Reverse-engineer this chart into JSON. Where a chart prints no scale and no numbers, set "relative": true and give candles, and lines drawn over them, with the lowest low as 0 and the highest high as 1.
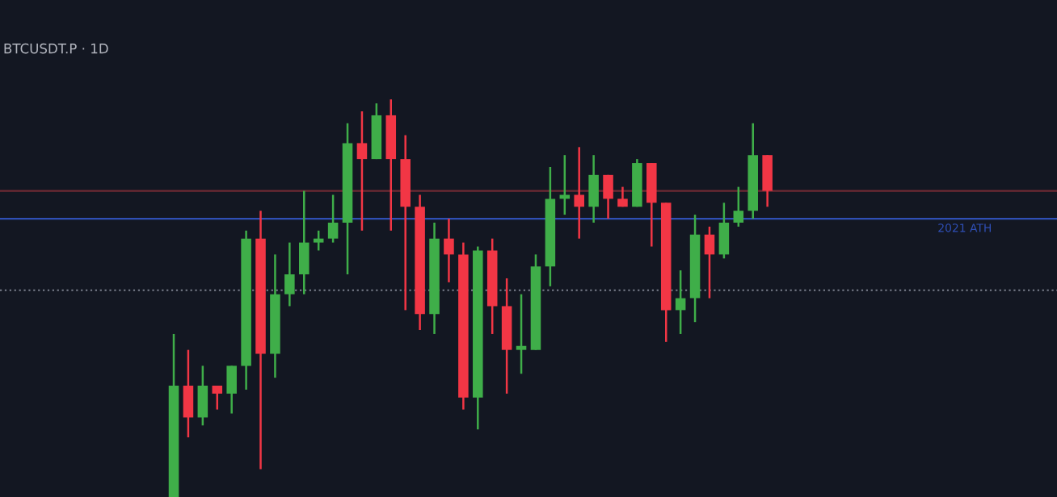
{
  "chart_data": {
    "type": "candlestick",
    "title": "BTCUSDT.P · 1D",
    "relative": true,
    "categories": [
      null,
      null,
      null,
      null,
      null,
      null,
      null,
      null,
      null,
      null,
      null,
      null,
      null,
      null,
      null,
      null,
      null,
      null,
      null,
      null,
      null,
      null,
      null,
      null,
      null,
      null,
      null,
      null,
      null,
      null,
      null,
      null,
      null,
      null,
      null,
      null,
      null,
      null,
      null,
      null,
      null,
      null
    ],
    "ohlc": [
      [
        0,
        0.41,
        0,
        0.28
      ],
      [
        0.28,
        0.37,
        0.15,
        0.2
      ],
      [
        0.2,
        0.33,
        0.18,
        0.28
      ],
      [
        0.28,
        0.28,
        0.22,
        0.26
      ],
      [
        0.26,
        0.33,
        0.21,
        0.33
      ],
      [
        0.33,
        0.67,
        0.27,
        0.65
      ],
      [
        0.65,
        0.72,
        0.07,
        0.36
      ],
      [
        0.36,
        0.61,
        0.3,
        0.51
      ],
      [
        0.51,
        0.64,
        0.48,
        0.56
      ],
      [
        0.56,
        0.77,
        0.51,
        0.64
      ],
      [
        0.64,
        0.67,
        0.62,
        0.65
      ],
      [
        0.65,
        0.76,
        0.64,
        0.69
      ],
      [
        0.69,
        0.94,
        0.56,
        0.89
      ],
      [
        0.89,
        0.97,
        0.67,
        0.85
      ],
      [
        0.85,
        0.99,
        0.85,
        0.96
      ],
      [
        0.96,
        1,
        0.67,
        0.85
      ],
      [
        0.85,
        0.91,
        0.47,
        0.73
      ],
      [
        0.73,
        0.76,
        0.42,
        0.46
      ],
      [
        0.46,
        0.69,
        0.41,
        0.65
      ],
      [
        0.65,
        0.7,
        0.54,
        0.61
      ],
      [
        0.61,
        0.64,
        0.22,
        0.25
      ],
      [
        0.25,
        0.63,
        0.17,
        0.62
      ],
      [
        0.62,
        0.65,
        0.41,
        0.48
      ],
      [
        0.48,
        0.55,
        0.26,
        0.37
      ],
      [
        0.37,
        0.51,
        0.31,
        0.38
      ],
      [
        0.37,
        0.61,
        0.37,
        0.58
      ],
      [
        0.58,
        0.83,
        0.53,
        0.75
      ],
      [
        0.75,
        0.86,
        0.71,
        0.76
      ],
      [
        0.76,
        0.88,
        0.65,
        0.73
      ],
      [
        0.73,
        0.86,
        0.69,
        0.81
      ],
      [
        0.81,
        0.81,
        0.7,
        0.75
      ],
      [
        0.75,
        0.78,
        0.73,
        0.73
      ],
      [
        0.73,
        0.85,
        0.73,
        0.84
      ],
      [
        0.84,
        0.84,
        0.63,
        0.74
      ],
      [
        0.74,
        0.74,
        0.39,
        0.47
      ],
      [
        0.47,
        0.57,
        0.41,
        0.5
      ],
      [
        0.5,
        0.71,
        0.44,
        0.66
      ],
      [
        0.66,
        0.68,
        0.5,
        0.61
      ],
      [
        0.61,
        0.74,
        0.6,
        0.69
      ],
      [
        0.69,
        0.78,
        0.68,
        0.72
      ],
      [
        0.72,
        0.94,
        0.7,
        0.86
      ],
      [
        0.86,
        0.86,
        0.73,
        0.77
      ]
    ],
    "colors": [
      "#3fae49",
      "#f23645",
      "#3fae49",
      "#f23645",
      "#3fae49",
      "#3fae49",
      "#f23645",
      "#3fae49",
      "#3fae49",
      "#3fae49",
      "#3fae49",
      "#3fae49",
      "#3fae49",
      "#f23645",
      "#3fae49",
      "#f23645",
      "#f23645",
      "#f23645",
      "#3fae49",
      "#f23645",
      "#f23645",
      "#3fae49",
      "#f23645",
      "#f23645",
      "#3fae49",
      "#3fae49",
      "#3fae49",
      "#3fae49",
      "#f23645",
      "#3fae49",
      "#f23645",
      "#f23645",
      "#3fae49",
      "#f23645",
      "#f23645",
      "#3fae49",
      "#3fae49",
      "#f23645",
      "#3fae49",
      "#3fae49",
      "#3fae49",
      "#f23645"
    ],
    "ref_lines": [
      {
        "axis": "y",
        "value": 0.77,
        "label": null,
        "color": "#6e2a33",
        "line_style": "solid"
      },
      {
        "axis": "y",
        "value": 0.7,
        "label": "2021 ATH",
        "color": "#2f4fb5",
        "line_style": "solid"
      },
      {
        "axis": "y",
        "value": 0.52,
        "label": null,
        "color": "#7a7f8c",
        "line_style": "dotted"
      }
    ],
    "grid": false
  }
}
